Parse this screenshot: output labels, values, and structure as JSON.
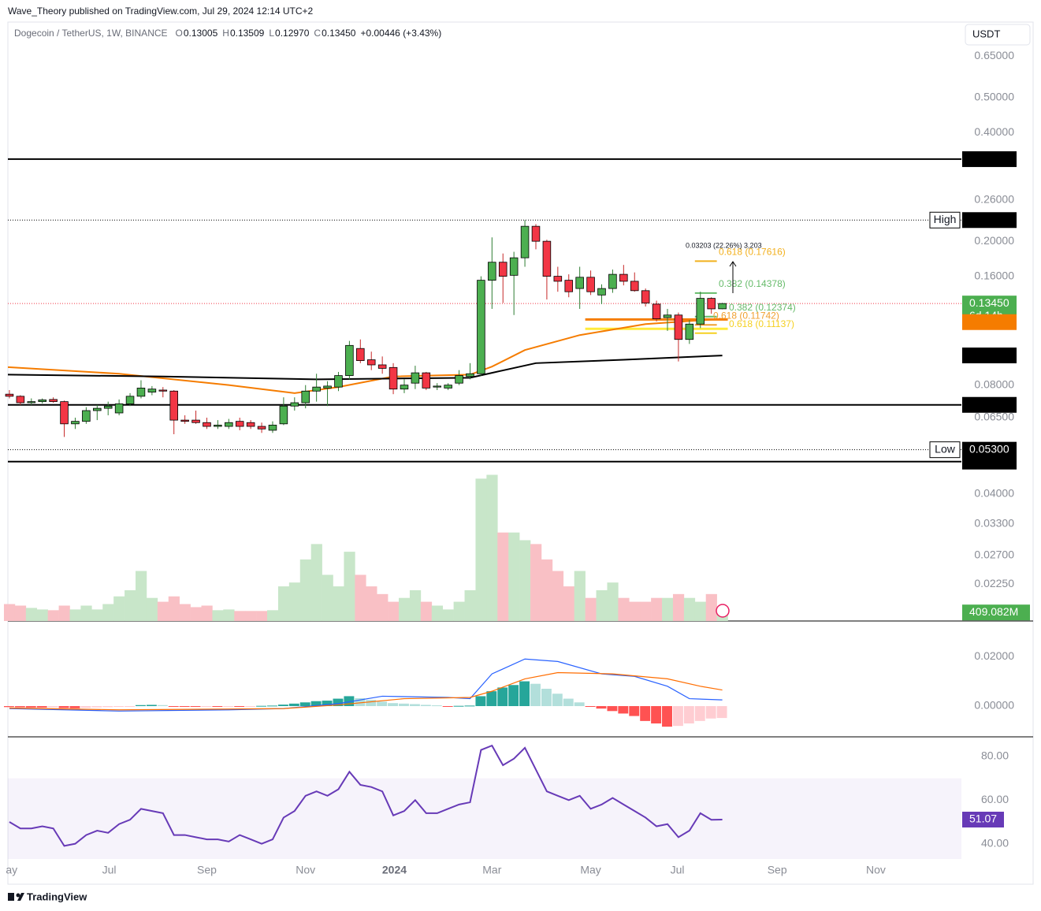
{
  "header": {
    "publisher": "Wave_Theory published on TradingView.com, Jul 29, 2024 12:14 UTC+2",
    "symbol": "Dogecoin / TetherUS, 1W, BINANCE",
    "ohlc": [
      {
        "key": "O",
        "value": "0.13005"
      },
      {
        "key": "H",
        "value": "0.13509"
      },
      {
        "key": "L",
        "value": "0.12970"
      },
      {
        "key": "C",
        "value": "0.13450"
      }
    ],
    "change": "+0.00446 (+3.43%)",
    "currency": "USDT"
  },
  "footer": {
    "brand": "TradingView"
  },
  "chart_data": {
    "type": "candlestick",
    "log_scale": true,
    "up_color": "#4caf50",
    "down_color": "#f23645",
    "xlim": [
      -0.14,
      86.8
    ],
    "ylim": [
      0.0178,
      0.8
    ],
    "xticks": [
      {
        "value": 0.2,
        "label": "ay"
      },
      {
        "value": 9.1,
        "label": "Jul"
      },
      {
        "value": 18.0,
        "label": "Sep"
      },
      {
        "value": 27.0,
        "label": "Nov"
      },
      {
        "value": 35.1,
        "label": "2024"
      },
      {
        "value": 44.0,
        "label": "Mar"
      },
      {
        "value": 53.0,
        "label": "May"
      },
      {
        "value": 60.9,
        "label": "Jul"
      },
      {
        "value": 70.0,
        "label": "Sep"
      },
      {
        "value": 79.0,
        "label": "Nov"
      }
    ],
    "yticks": [
      {
        "value": 0.65,
        "label": "0.65000"
      },
      {
        "value": 0.5,
        "label": "0.50000"
      },
      {
        "value": 0.4,
        "label": "0.40000"
      },
      {
        "value": 0.26,
        "label": "0.26000"
      },
      {
        "value": 0.2,
        "label": "0.20000"
      },
      {
        "value": 0.16,
        "label": "0.16000"
      },
      {
        "value": 0.08,
        "label": "0.08000"
      },
      {
        "value": 0.065,
        "label": "0.06500"
      },
      {
        "value": 0.04,
        "label": "0.04000"
      },
      {
        "value": 0.033,
        "label": "0.03300"
      },
      {
        "value": 0.027,
        "label": "0.02700"
      },
      {
        "value": 0.0225,
        "label": "0.02250"
      }
    ],
    "candles": [
      [
        0.0755,
        0.0775,
        0.0735,
        0.0745
      ],
      [
        0.0745,
        0.075,
        0.0705,
        0.0715
      ],
      [
        0.0715,
        0.0735,
        0.0705,
        0.072
      ],
      [
        0.072,
        0.0735,
        0.0712,
        0.0728
      ],
      [
        0.073,
        0.074,
        0.0715,
        0.072
      ],
      [
        0.072,
        0.0725,
        0.0575,
        0.0625
      ],
      [
        0.0625,
        0.065,
        0.0605,
        0.0635
      ],
      [
        0.0635,
        0.0695,
        0.0625,
        0.068
      ],
      [
        0.068,
        0.0705,
        0.064,
        0.069
      ],
      [
        0.069,
        0.072,
        0.066,
        0.07
      ],
      [
        0.067,
        0.073,
        0.066,
        0.071
      ],
      [
        0.071,
        0.076,
        0.07,
        0.0745
      ],
      [
        0.0745,
        0.0825,
        0.0735,
        0.0785
      ],
      [
        0.0765,
        0.0795,
        0.075,
        0.078
      ],
      [
        0.0775,
        0.079,
        0.074,
        0.077
      ],
      [
        0.077,
        0.0775,
        0.0585,
        0.064
      ],
      [
        0.064,
        0.066,
        0.0625,
        0.0635
      ],
      [
        0.064,
        0.068,
        0.0625,
        0.063
      ],
      [
        0.063,
        0.065,
        0.0605,
        0.0615
      ],
      [
        0.0615,
        0.064,
        0.0605,
        0.062
      ],
      [
        0.0615,
        0.0645,
        0.0605,
        0.063
      ],
      [
        0.0635,
        0.065,
        0.06,
        0.0615
      ],
      [
        0.063,
        0.064,
        0.0605,
        0.0615
      ],
      [
        0.0615,
        0.063,
        0.059,
        0.0605
      ],
      [
        0.06,
        0.0635,
        0.059,
        0.062
      ],
      [
        0.0625,
        0.074,
        0.062,
        0.07
      ],
      [
        0.07,
        0.074,
        0.068,
        0.0715
      ],
      [
        0.0715,
        0.08,
        0.069,
        0.077
      ],
      [
        0.077,
        0.086,
        0.072,
        0.079
      ],
      [
        0.0785,
        0.082,
        0.07,
        0.0795
      ],
      [
        0.079,
        0.087,
        0.077,
        0.085
      ],
      [
        0.085,
        0.106,
        0.083,
        0.103
      ],
      [
        0.101,
        0.107,
        0.092,
        0.0935
      ],
      [
        0.094,
        0.099,
        0.088,
        0.091
      ],
      [
        0.091,
        0.096,
        0.086,
        0.089
      ],
      [
        0.0895,
        0.092,
        0.0755,
        0.078
      ],
      [
        0.078,
        0.083,
        0.076,
        0.08
      ],
      [
        0.081,
        0.0905,
        0.078,
        0.0865
      ],
      [
        0.0865,
        0.087,
        0.0775,
        0.0785
      ],
      [
        0.079,
        0.081,
        0.0775,
        0.0795
      ],
      [
        0.0785,
        0.081,
        0.0775,
        0.08
      ],
      [
        0.081,
        0.088,
        0.08,
        0.085
      ],
      [
        0.0845,
        0.092,
        0.083,
        0.086
      ],
      [
        0.086,
        0.16,
        0.085,
        0.156
      ],
      [
        0.156,
        0.205,
        0.13,
        0.175
      ],
      [
        0.175,
        0.185,
        0.135,
        0.16
      ],
      [
        0.161,
        0.187,
        0.125,
        0.18
      ],
      [
        0.18,
        0.2288,
        0.17,
        0.22
      ],
      [
        0.22,
        0.223,
        0.19,
        0.2
      ],
      [
        0.2,
        0.202,
        0.138,
        0.16
      ],
      [
        0.16,
        0.17,
        0.145,
        0.155
      ],
      [
        0.156,
        0.162,
        0.14,
        0.145
      ],
      [
        0.148,
        0.17,
        0.13,
        0.159
      ],
      [
        0.159,
        0.166,
        0.142,
        0.145
      ],
      [
        0.142,
        0.152,
        0.134,
        0.148
      ],
      [
        0.148,
        0.167,
        0.144,
        0.162
      ],
      [
        0.162,
        0.172,
        0.151,
        0.155
      ],
      [
        0.155,
        0.164,
        0.145,
        0.146
      ],
      [
        0.146,
        0.148,
        0.132,
        0.135
      ],
      [
        0.134,
        0.137,
        0.12,
        0.122
      ],
      [
        0.123,
        0.13,
        0.113,
        0.125
      ],
      [
        0.125,
        0.127,
        0.093,
        0.107
      ],
      [
        0.107,
        0.121,
        0.104,
        0.118
      ],
      [
        0.118,
        0.145,
        0.115,
        0.139
      ],
      [
        0.139,
        0.14,
        0.126,
        0.13
      ],
      [
        0.13005,
        0.13509,
        0.1297,
        0.1345
      ]
    ],
    "moving_averages": [
      {
        "color": "#f57c00",
        "x": [
          -0.14,
          10,
          20,
          26,
          30,
          35,
          42,
          44,
          47,
          52,
          58,
          65
        ],
        "values": [
          0.0897,
          0.086,
          0.08,
          0.076,
          0.079,
          0.0845,
          0.0855,
          0.09,
          0.1,
          0.11,
          0.118,
          0.122
        ]
      },
      {
        "color": "#000000",
        "x": [
          -0.14,
          14,
          28,
          42,
          44,
          48,
          56,
          65
        ],
        "values": [
          0.0855,
          0.0845,
          0.083,
          0.0838,
          0.0865,
          0.092,
          0.094,
          0.0966
        ]
      }
    ],
    "price_tags": [
      {
        "value": 0.33746,
        "color": "#000000",
        "line": "solid"
      },
      {
        "value": 0.22888,
        "color": "#000000",
        "line": "dotted",
        "side_label": "High"
      },
      {
        "value": 0.1345,
        "label": "0.13450",
        "color": "#4caf50",
        "line": "dotted-red",
        "countdown": "6d 14h"
      },
      {
        "value": 0.11949,
        "color": "#f57c00"
      },
      {
        "value": 0.09664,
        "color": "#000000"
      },
      {
        "value": 0.07053,
        "color": "#000000",
        "line": "solid"
      },
      {
        "value": 0.053,
        "label": "0.05300",
        "color": "#000000",
        "line": "dotted",
        "side_label": "Low"
      },
      {
        "value": 0.04914,
        "color": "#000000",
        "line": "solid"
      }
    ],
    "fib_levels": [
      {
        "value": 0.17616,
        "label": "0.618 (0.17616)",
        "color": "#f2b01e"
      },
      {
        "value": 0.14378,
        "label": "0.382 (0.14378)",
        "color": "#66bb6a"
      },
      {
        "value": 0.12374,
        "label": "0.382 (0.12374)",
        "color": "#66bb6a"
      },
      {
        "value": 0.11742,
        "label": "0.618 (0.11742)",
        "color": "#f0a030"
      },
      {
        "value": 0.11137,
        "label": "0.618 (0.11137)",
        "color": "#f5d020"
      }
    ],
    "measure_label": "0.03203 (22.26%) 3,203",
    "volume": {
      "ylim": [
        0,
        7200
      ],
      "up_color": "#c8e6c9",
      "down_color": "#f9c0c5",
      "values": [
        814,
        740,
        629,
        555,
        518,
        740,
        555,
        740,
        555,
        814,
        1184,
        1480,
        2405,
        1110,
        925,
        1184,
        814,
        666,
        740,
        518,
        555,
        481,
        481,
        481,
        518,
        1665,
        1850,
        2960,
        3700,
        2220,
        1665,
        3330,
        2220,
        1665,
        1295,
        925,
        1110,
        1480,
        925,
        740,
        555,
        925,
        1480,
        6845,
        7030,
        4255,
        4255,
        3885,
        3700,
        2960,
        2405,
        1665,
        2405,
        1110,
        1480,
        1850,
        1110,
        925,
        925,
        1110,
        1110,
        1295,
        1110,
        925,
        1295,
        409.082
      ],
      "tag": {
        "value": 409.082,
        "label": "409.082M",
        "color": "#4caf50"
      }
    },
    "macd": {
      "ylim": [
        -0.0124,
        0.0337
      ],
      "yticks": [
        {
          "value": 0.02,
          "label": "0.02000"
        },
        {
          "value": 0,
          "label": "0.00000"
        }
      ],
      "colors": {
        "up_rising": "#26a69a",
        "up_falling": "#b2dfdb",
        "down_falling": "#ff5252",
        "down_rising": "#ffcdd2"
      },
      "histogram": [
        -0.0004,
        -0.0005,
        -0.0006,
        -0.0006,
        -0.0005,
        -0.0008,
        -0.0009,
        -0.0007,
        -0.0005,
        -0.0004,
        -0.0003,
        -0.0001,
        0.0004,
        0.0005,
        0.0004,
        -0.0002,
        -0.0003,
        -0.0003,
        -0.0002,
        -0.0002,
        -0.0001,
        -0.0002,
        -0.0001,
        0.0001,
        0.0002,
        0.0006,
        0.001,
        0.0015,
        0.002,
        0.0022,
        0.003,
        0.004,
        0.0032,
        0.0025,
        0.0018,
        0.0012,
        0.001,
        0.0008,
        0.0005,
        0.0003,
        -0.0002,
        0.0001,
        0.0002,
        0.004,
        0.006,
        0.0075,
        0.0085,
        0.01,
        0.009,
        0.007,
        0.005,
        0.003,
        0.0015,
        -0.0003,
        -0.001,
        -0.002,
        -0.003,
        -0.004,
        -0.006,
        -0.007,
        -0.0083,
        -0.008,
        -0.007,
        -0.006,
        -0.005,
        -0.0048
      ],
      "lines": [
        {
          "color": "#2962ff",
          "x": [
            0,
            10,
            20,
            25,
            30,
            34,
            40,
            42,
            44,
            47,
            50,
            54,
            57,
            60,
            62,
            65
          ],
          "values": [
            -0.001,
            -0.002,
            -0.0015,
            -0.001,
            0.001,
            0.004,
            0.0035,
            0.003,
            0.013,
            0.019,
            0.018,
            0.013,
            0.012,
            0.008,
            0.003,
            0.0025
          ]
        },
        {
          "color": "#ff6d00",
          "x": [
            0,
            10,
            20,
            25,
            30,
            36,
            42,
            44,
            47,
            50,
            55,
            60,
            63,
            65
          ],
          "values": [
            -0.0008,
            -0.0015,
            -0.0012,
            -0.001,
            0.0005,
            0.003,
            0.0035,
            0.006,
            0.011,
            0.0135,
            0.013,
            0.011,
            0.008,
            0.0065
          ]
        }
      ]
    },
    "rsi": {
      "ylim": [
        33,
        88.3
      ],
      "band": [
        30,
        70
      ],
      "color": "#673ab7",
      "yticks": [
        {
          "value": 80,
          "label": "80.00"
        },
        {
          "value": 60,
          "label": "60.00"
        },
        {
          "value": 40,
          "label": "40.00"
        }
      ],
      "values": [
        50,
        47,
        47,
        48,
        47,
        39,
        40,
        44,
        46,
        45,
        49,
        51,
        56,
        55,
        54,
        44,
        44,
        43,
        42,
        42,
        41,
        44,
        42,
        40,
        42,
        52,
        55,
        62,
        64,
        62,
        65,
        73,
        67,
        66,
        64,
        53,
        55,
        60,
        54,
        54,
        56,
        58,
        59,
        83,
        85,
        76,
        79,
        84,
        74,
        64,
        62,
        60,
        62,
        56,
        58,
        61,
        58,
        55,
        52,
        48,
        49,
        43,
        46,
        54,
        51,
        51.07
      ],
      "tag": 51.07
    }
  }
}
